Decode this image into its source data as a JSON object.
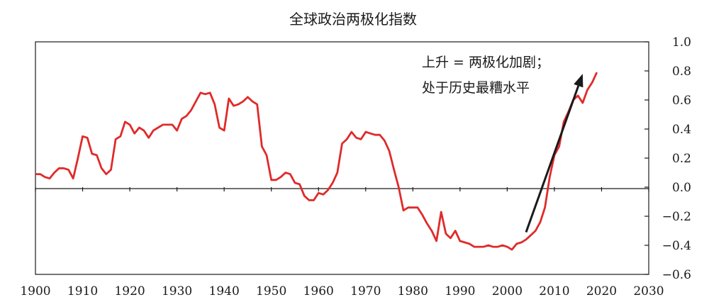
{
  "chart_data": {
    "type": "line",
    "title": "全球政治两极化指数",
    "xlabel": "",
    "ylabel": "",
    "xlim": [
      1900,
      2030
    ],
    "ylim": [
      -0.6,
      1.0
    ],
    "x_ticks": [
      "1900",
      "1910",
      "1920",
      "1930",
      "1940",
      "1950",
      "1960",
      "1970",
      "1980",
      "1990",
      "2000",
      "2010",
      "2020",
      "2030"
    ],
    "y_ticks": [
      "1.0",
      "0.8",
      "0.6",
      "0.4",
      "0.2",
      "0.0",
      "−0.2",
      "−0.4",
      "−0.6"
    ],
    "grid": false,
    "legend": "none",
    "annotation": {
      "lines": [
        "上升 = 两极化加剧；",
        "处于历史最糟水平"
      ],
      "arrow_from": [
        2004,
        -0.31
      ],
      "arrow_to": [
        2016,
        0.78
      ]
    },
    "series": [
      {
        "color": "#e02a2a",
        "points": [
          [
            1900,
            0.09
          ],
          [
            1901,
            0.09
          ],
          [
            1902,
            0.07
          ],
          [
            1903,
            0.06
          ],
          [
            1904,
            0.1
          ],
          [
            1905,
            0.13
          ],
          [
            1906,
            0.13
          ],
          [
            1907,
            0.12
          ],
          [
            1908,
            0.06
          ],
          [
            1909,
            0.2
          ],
          [
            1910,
            0.35
          ],
          [
            1911,
            0.34
          ],
          [
            1912,
            0.23
          ],
          [
            1913,
            0.22
          ],
          [
            1914,
            0.13
          ],
          [
            1915,
            0.09
          ],
          [
            1916,
            0.12
          ],
          [
            1917,
            0.33
          ],
          [
            1918,
            0.35
          ],
          [
            1919,
            0.45
          ],
          [
            1920,
            0.43
          ],
          [
            1921,
            0.37
          ],
          [
            1922,
            0.41
          ],
          [
            1923,
            0.39
          ],
          [
            1924,
            0.34
          ],
          [
            1925,
            0.39
          ],
          [
            1926,
            0.41
          ],
          [
            1927,
            0.43
          ],
          [
            1928,
            0.43
          ],
          [
            1929,
            0.43
          ],
          [
            1930,
            0.39
          ],
          [
            1931,
            0.47
          ],
          [
            1932,
            0.49
          ],
          [
            1933,
            0.53
          ],
          [
            1934,
            0.59
          ],
          [
            1935,
            0.65
          ],
          [
            1936,
            0.64
          ],
          [
            1937,
            0.65
          ],
          [
            1938,
            0.57
          ],
          [
            1939,
            0.41
          ],
          [
            1940,
            0.39
          ],
          [
            1941,
            0.61
          ],
          [
            1942,
            0.56
          ],
          [
            1943,
            0.57
          ],
          [
            1944,
            0.59
          ],
          [
            1945,
            0.62
          ],
          [
            1946,
            0.59
          ],
          [
            1947,
            0.57
          ],
          [
            1948,
            0.28
          ],
          [
            1949,
            0.22
          ],
          [
            1950,
            0.05
          ],
          [
            1951,
            0.05
          ],
          [
            1952,
            0.07
          ],
          [
            1953,
            0.1
          ],
          [
            1954,
            0.09
          ],
          [
            1955,
            0.03
          ],
          [
            1956,
            0.02
          ],
          [
            1957,
            -0.06
          ],
          [
            1958,
            -0.09
          ],
          [
            1959,
            -0.09
          ],
          [
            1960,
            -0.04
          ],
          [
            1961,
            -0.05
          ],
          [
            1962,
            -0.02
          ],
          [
            1963,
            0.03
          ],
          [
            1964,
            0.1
          ],
          [
            1965,
            0.3
          ],
          [
            1966,
            0.33
          ],
          [
            1967,
            0.38
          ],
          [
            1968,
            0.34
          ],
          [
            1969,
            0.33
          ],
          [
            1970,
            0.38
          ],
          [
            1971,
            0.37
          ],
          [
            1972,
            0.36
          ],
          [
            1973,
            0.36
          ],
          [
            1974,
            0.32
          ],
          [
            1975,
            0.25
          ],
          [
            1976,
            0.12
          ],
          [
            1977,
            0.0
          ],
          [
            1978,
            -0.16
          ],
          [
            1979,
            -0.14
          ],
          [
            1980,
            -0.14
          ],
          [
            1981,
            -0.14
          ],
          [
            1982,
            -0.19
          ],
          [
            1983,
            -0.25
          ],
          [
            1984,
            -0.3
          ],
          [
            1985,
            -0.37
          ],
          [
            1986,
            -0.17
          ],
          [
            1987,
            -0.32
          ],
          [
            1988,
            -0.35
          ],
          [
            1989,
            -0.3
          ],
          [
            1990,
            -0.37
          ],
          [
            1991,
            -0.38
          ],
          [
            1992,
            -0.39
          ],
          [
            1993,
            -0.41
          ],
          [
            1994,
            -0.41
          ],
          [
            1995,
            -0.41
          ],
          [
            1996,
            -0.4
          ],
          [
            1997,
            -0.41
          ],
          [
            1998,
            -0.41
          ],
          [
            1999,
            -0.4
          ],
          [
            2000,
            -0.41
          ],
          [
            2001,
            -0.43
          ],
          [
            2002,
            -0.39
          ],
          [
            2003,
            -0.38
          ],
          [
            2004,
            -0.36
          ],
          [
            2005,
            -0.33
          ],
          [
            2006,
            -0.3
          ],
          [
            2007,
            -0.24
          ],
          [
            2008,
            -0.14
          ],
          [
            2009,
            0.07
          ],
          [
            2010,
            0.22
          ],
          [
            2011,
            0.28
          ],
          [
            2012,
            0.45
          ],
          [
            2013,
            0.52
          ],
          [
            2014,
            0.6
          ],
          [
            2015,
            0.63
          ],
          [
            2016,
            0.58
          ],
          [
            2017,
            0.67
          ],
          [
            2018,
            0.72
          ],
          [
            2019,
            0.79
          ]
        ]
      }
    ]
  }
}
